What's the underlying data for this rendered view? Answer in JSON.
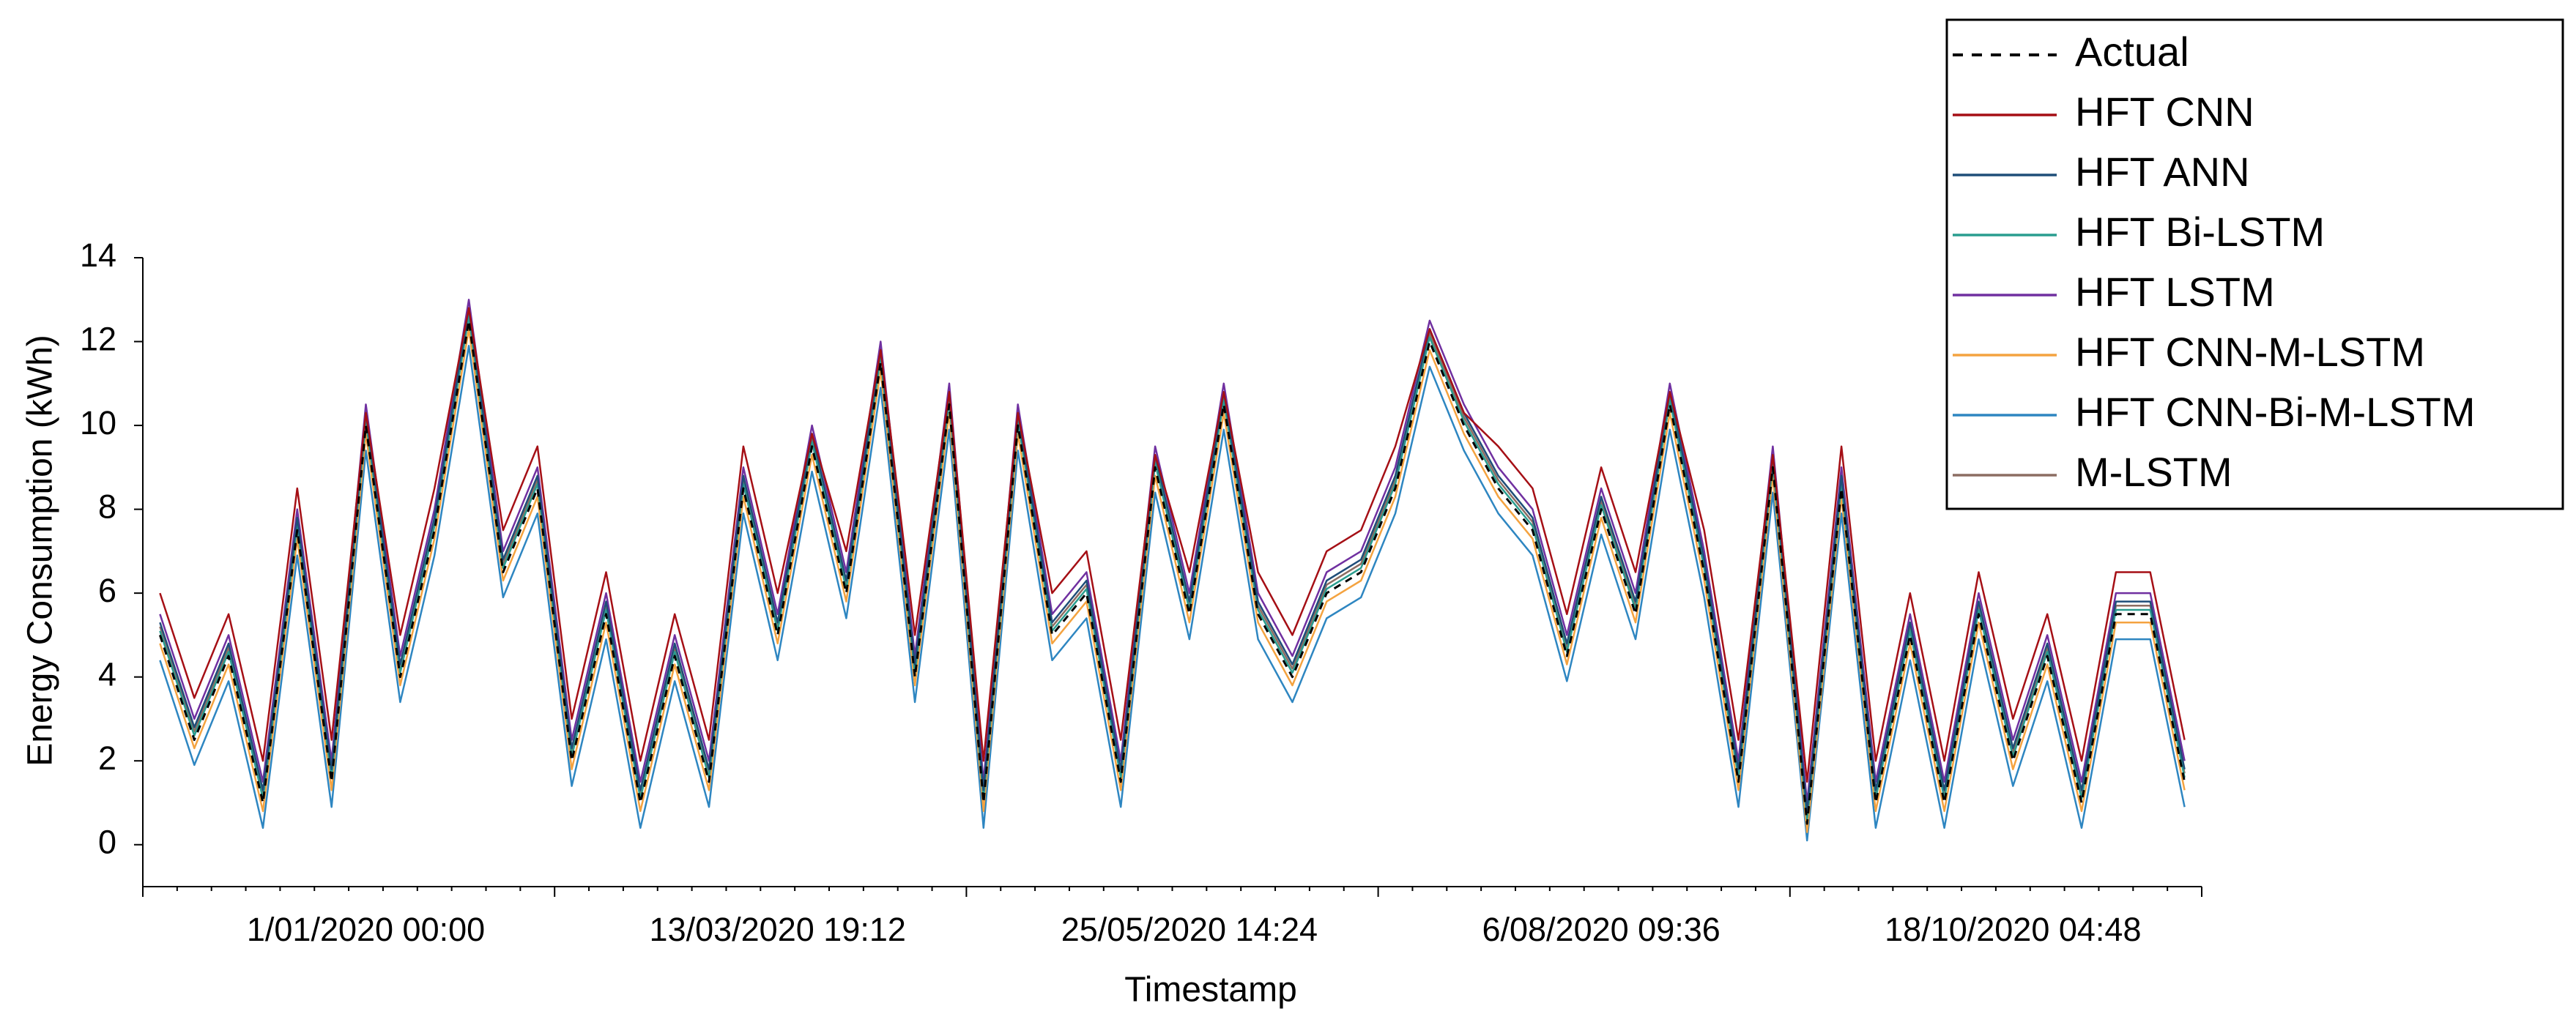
{
  "chart_data": {
    "type": "line",
    "x_label": "Timestamp",
    "y_label": "Energy Consumption (kWh)",
    "ylim": [
      -1,
      14
    ],
    "yticks": [
      0,
      2,
      4,
      6,
      8,
      10,
      12,
      14
    ],
    "legend": "top-right",
    "categories": [
      null,
      null,
      null,
      null,
      null,
      null,
      "1/01/2020 00:00",
      null,
      null,
      null,
      null,
      null,
      null,
      null,
      null,
      null,
      null,
      null,
      "13/03/2020 19:12",
      null,
      null,
      null,
      null,
      null,
      null,
      null,
      null,
      null,
      null,
      null,
      "25/05/2020 14:24",
      null,
      null,
      null,
      null,
      null,
      null,
      null,
      null,
      null,
      null,
      null,
      "6/08/2020 09:36",
      null,
      null,
      null,
      null,
      null,
      null,
      null,
      null,
      null,
      null,
      null,
      "18/10/2020 04:48",
      null,
      null,
      null,
      null,
      null
    ],
    "series": [
      {
        "name": "Actual",
        "color": "#000000",
        "dashed": true,
        "values": [
          5,
          2.5,
          4.5,
          1,
          7.5,
          1.5,
          10,
          4,
          7.5,
          12.5,
          6.5,
          8.5,
          2,
          5.5,
          1,
          4.5,
          1.5,
          8.5,
          5,
          9.5,
          6,
          11.5,
          4,
          10.5,
          1,
          10,
          5,
          6,
          1.5,
          9,
          5.5,
          10.5,
          5.5,
          4,
          6,
          6.5,
          8.5,
          12,
          10,
          8.5,
          7.5,
          4.5,
          8,
          5.5,
          10.5,
          6.5,
          1.5,
          9,
          0.5,
          8.5,
          1,
          5,
          1,
          5.5,
          2,
          4.5,
          1,
          5.5,
          5.5,
          1.5
        ]
      },
      {
        "name": "HFT CNN",
        "color": "#a50f15",
        "values": [
          6,
          3.5,
          5.5,
          2,
          8.5,
          2.5,
          10.3,
          5,
          8.5,
          12.8,
          7.5,
          9.5,
          3,
          6.5,
          2,
          5.5,
          2.5,
          9.5,
          6,
          9.8,
          7,
          11.8,
          5,
          10.8,
          2,
          10.3,
          6,
          7,
          2.5,
          9.3,
          6.5,
          10.8,
          6.5,
          5,
          7,
          7.5,
          9.5,
          12.3,
          10.3,
          9.5,
          8.5,
          5.5,
          9,
          6.5,
          10.8,
          7.5,
          2.5,
          9.3,
          1.5,
          9.5,
          2,
          6,
          2,
          6.5,
          3,
          5.5,
          2,
          6.5,
          6.5,
          2.5
        ]
      },
      {
        "name": "HFT ANN",
        "color": "#1f4e79",
        "values": [
          5.3,
          2.8,
          4.8,
          1.3,
          7.8,
          1.8,
          10.3,
          4.3,
          7.8,
          12.8,
          6.8,
          8.8,
          2.3,
          5.8,
          1.3,
          4.8,
          1.8,
          8.8,
          5.3,
          9.8,
          6.3,
          11.8,
          4.3,
          10.8,
          1.3,
          10.3,
          5.3,
          6.3,
          1.8,
          9.3,
          5.8,
          10.8,
          5.8,
          4.3,
          6.3,
          6.8,
          8.8,
          12.3,
          10.3,
          8.8,
          7.8,
          4.8,
          8.3,
          5.8,
          10.8,
          6.8,
          1.8,
          9.3,
          0.8,
          8.8,
          1.3,
          5.3,
          1.3,
          5.8,
          2.3,
          4.8,
          1.3,
          5.8,
          5.8,
          1.8
        ]
      },
      {
        "name": "HFT Bi-LSTM",
        "color": "#2a9d8f",
        "values": [
          5.1,
          2.6,
          4.6,
          1.1,
          7.6,
          1.6,
          10.1,
          4.1,
          7.6,
          12.6,
          6.6,
          8.6,
          2.1,
          5.6,
          1.1,
          4.6,
          1.6,
          8.6,
          5.1,
          9.6,
          6.1,
          11.6,
          4.1,
          10.6,
          1.1,
          10.1,
          5.1,
          6.1,
          1.6,
          9.1,
          5.6,
          10.6,
          5.6,
          4.1,
          6.1,
          6.6,
          8.6,
          12.1,
          10.1,
          8.6,
          7.6,
          4.6,
          8.1,
          5.6,
          10.6,
          6.6,
          1.6,
          9.1,
          0.6,
          8.6,
          1.1,
          5.1,
          1.1,
          5.6,
          2.1,
          4.6,
          1.1,
          5.6,
          5.6,
          1.6
        ]
      },
      {
        "name": "HFT LSTM",
        "color": "#7030a0",
        "values": [
          5.5,
          3,
          5,
          1.5,
          8,
          2,
          10.5,
          4.5,
          8,
          13,
          7,
          9,
          2.5,
          6,
          1.5,
          5,
          2,
          9,
          5.5,
          10,
          6.5,
          12,
          4.5,
          11,
          1.5,
          10.5,
          5.5,
          6.5,
          2,
          9.5,
          6,
          11,
          6,
          4.5,
          6.5,
          7,
          9,
          12.5,
          10.5,
          9,
          8,
          5,
          8.5,
          6,
          11,
          7,
          2,
          9.5,
          1,
          9,
          1.5,
          5.5,
          1.5,
          6,
          2.5,
          5,
          1.5,
          6,
          6,
          2
        ]
      },
      {
        "name": "HFT CNN-M-LSTM",
        "color": "#f4a340",
        "values": [
          4.8,
          2.3,
          4.3,
          0.8,
          7.3,
          1.3,
          9.8,
          3.8,
          7.3,
          12.3,
          6.3,
          8.3,
          1.8,
          5.3,
          0.8,
          4.3,
          1.3,
          8.3,
          4.8,
          9.3,
          5.8,
          11.3,
          3.8,
          10.3,
          0.8,
          9.8,
          4.8,
          5.8,
          1.3,
          8.8,
          5.3,
          10.3,
          5.3,
          3.8,
          5.8,
          6.3,
          8.3,
          11.8,
          9.8,
          8.3,
          7.3,
          4.3,
          7.8,
          5.3,
          10.3,
          6.3,
          1.3,
          8.8,
          0.3,
          8.3,
          0.8,
          4.8,
          0.8,
          5.3,
          1.8,
          4.3,
          0.8,
          5.3,
          5.3,
          1.3
        ]
      },
      {
        "name": "HFT CNN-Bi-M-LSTM",
        "color": "#2e86c1",
        "values": [
          4.4,
          1.9,
          3.9,
          0.4,
          6.9,
          0.9,
          9.4,
          3.4,
          6.9,
          11.9,
          5.9,
          7.9,
          1.4,
          4.9,
          0.4,
          3.9,
          0.9,
          7.9,
          4.4,
          8.9,
          5.4,
          10.9,
          3.4,
          9.9,
          0.4,
          9.4,
          4.4,
          5.4,
          0.9,
          8.4,
          4.9,
          9.9,
          4.9,
          3.4,
          5.4,
          5.9,
          7.9,
          11.4,
          9.4,
          7.9,
          6.9,
          3.9,
          7.4,
          4.9,
          9.9,
          5.9,
          0.9,
          8.4,
          0.1,
          7.9,
          0.4,
          4.4,
          0.4,
          4.9,
          1.4,
          3.9,
          0.4,
          4.9,
          4.9,
          0.9
        ]
      },
      {
        "name": "M-LSTM",
        "color": "#8c6d62",
        "values": [
          5.2,
          2.7,
          4.7,
          1.2,
          7.7,
          1.7,
          10.2,
          4.2,
          7.7,
          12.7,
          6.7,
          8.7,
          2.2,
          5.7,
          1.2,
          4.7,
          1.7,
          8.7,
          5.2,
          9.7,
          6.2,
          11.7,
          4.2,
          10.7,
          1.2,
          10.2,
          5.2,
          6.2,
          1.7,
          9.2,
          5.7,
          10.7,
          5.7,
          4.2,
          6.2,
          6.7,
          8.7,
          12.2,
          10.2,
          8.7,
          7.7,
          4.7,
          8.2,
          5.7,
          10.7,
          6.7,
          1.7,
          9.2,
          0.7,
          8.7,
          1.2,
          5.2,
          1.2,
          5.7,
          2.2,
          4.7,
          1.2,
          5.7,
          5.7,
          1.7
        ]
      }
    ]
  }
}
